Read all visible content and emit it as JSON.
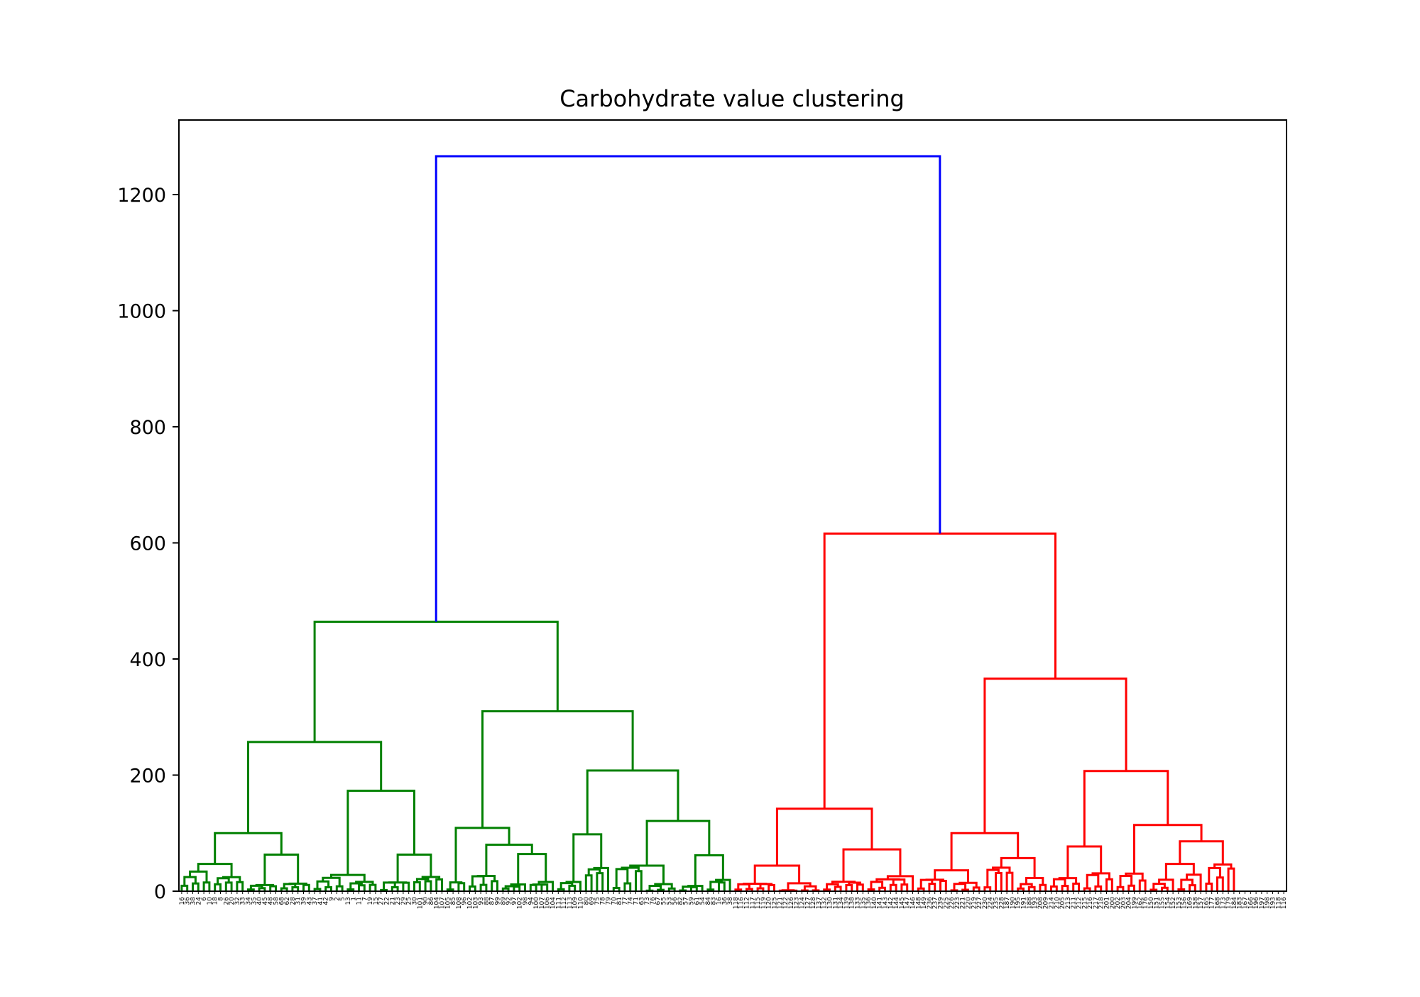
{
  "chart_data": {
    "type": "dendrogram",
    "title": "Carbohydrate value clustering",
    "xlabel": "",
    "ylabel": "",
    "ylim": [
      0,
      1330
    ],
    "y_ticks": [
      0,
      200,
      400,
      600,
      800,
      1000,
      1200
    ],
    "grid": false,
    "leaf_count": 200,
    "leaf_labels_left_visible": [
      "16",
      "36",
      "38",
      "24",
      "6",
      "10",
      "18",
      "8",
      "26",
      "20",
      "32",
      "33",
      "34",
      "35",
      "40",
      "45",
      "48",
      "58",
      "68",
      "62",
      "28",
      "31",
      "39",
      "43",
      "37",
      "41",
      "42",
      "9",
      "2",
      "5",
      "13",
      "1",
      "11",
      "7",
      "19",
      "15",
      "27",
      "22",
      "21",
      "23",
      "29",
      "25",
      "30",
      "101",
      "90",
      "86",
      "104",
      "107",
      "105",
      "85",
      "108",
      "96",
      "102",
      "103",
      "93",
      "88",
      "87",
      "99",
      "89",
      "92",
      "97",
      "102",
      "98",
      "94",
      "100",
      "107",
      "106",
      "104",
      "111",
      "112",
      "113",
      "109",
      "110",
      "80",
      "69",
      "75",
      "78",
      "79",
      "70",
      "81",
      "77",
      "74",
      "71",
      "63",
      "73",
      "76",
      "67",
      "55",
      "53",
      "56",
      "82",
      "57",
      "59",
      "61",
      "54",
      "84",
      "83"
    ],
    "leaf_labels_right_visible": [
      "118",
      "116",
      "112",
      "117",
      "115",
      "119",
      "120",
      "125",
      "121",
      "122",
      "126",
      "123",
      "124",
      "127",
      "128",
      "137",
      "132",
      "130",
      "131",
      "134",
      "139",
      "138",
      "133",
      "135",
      "136",
      "140",
      "141",
      "143",
      "142",
      "144",
      "145",
      "147",
      "146",
      "148",
      "149",
      "236",
      "237",
      "239",
      "225",
      "226",
      "223",
      "221",
      "220",
      "219",
      "227",
      "230",
      "224",
      "235",
      "228",
      "187",
      "190",
      "195",
      "191",
      "188",
      "193",
      "208",
      "209",
      "214",
      "210",
      "205",
      "213",
      "211",
      "212",
      "215",
      "216",
      "217",
      "218",
      "201",
      "200",
      "202",
      "203",
      "204",
      "199",
      "162",
      "176",
      "150",
      "151",
      "155",
      "154",
      "152",
      "153",
      "156",
      "169",
      "158",
      "157",
      "165",
      "177",
      "168",
      "173",
      "179",
      "184",
      "183",
      "167",
      "166",
      "196",
      "197",
      "198",
      "193"
    ],
    "merges": [
      {
        "cluster": "root",
        "height": 1266,
        "color": "#0000ff",
        "children": [
          "green",
          "red"
        ]
      },
      {
        "cluster": "green",
        "height": 464,
        "color": "#008000",
        "children": [
          "g1",
          "g2"
        ]
      },
      {
        "cluster": "g1",
        "height": 257,
        "color": "#008000",
        "children": [
          "g1a",
          "g1b"
        ]
      },
      {
        "cluster": "g1a",
        "height": 100,
        "color": "#008000"
      },
      {
        "cluster": "g1b",
        "height": 173,
        "color": "#008000"
      },
      {
        "cluster": "g2",
        "height": 310,
        "color": "#008000",
        "children": [
          "g2a",
          "g2b"
        ]
      },
      {
        "cluster": "g2a",
        "height": 109,
        "color": "#008000"
      },
      {
        "cluster": "g2b",
        "height": 208,
        "color": "#008000"
      },
      {
        "cluster": "red",
        "height": 616,
        "color": "#ff0000",
        "children": [
          "r1",
          "r2"
        ]
      },
      {
        "cluster": "r1",
        "height": 142,
        "color": "#ff0000"
      },
      {
        "cluster": "r2",
        "height": 366,
        "color": "#ff0000",
        "children": [
          "r2a",
          "r2b"
        ]
      },
      {
        "cluster": "r2a",
        "height": 100,
        "color": "#ff0000"
      },
      {
        "cluster": "r2b",
        "height": 207,
        "color": "#ff0000"
      }
    ],
    "colors": {
      "root": "#0000ff",
      "cluster_left": "#008000",
      "cluster_right": "#ff0000"
    }
  }
}
